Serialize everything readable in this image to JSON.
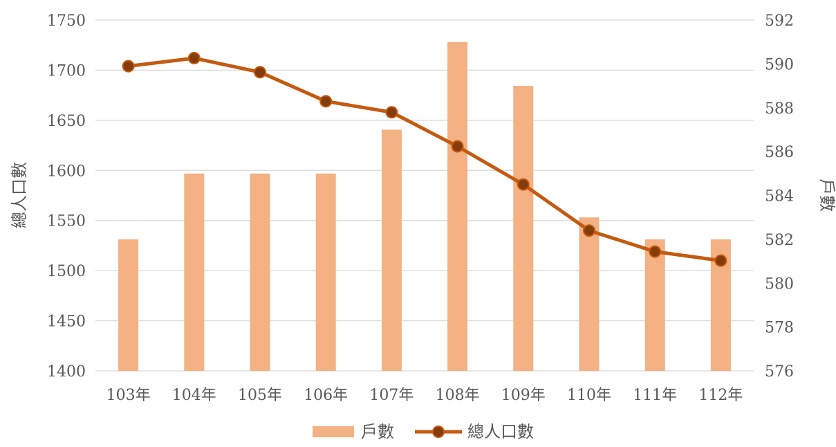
{
  "chart_data": {
    "type": "bar",
    "categories": [
      "103年",
      "104年",
      "105年",
      "106年",
      "107年",
      "108年",
      "109年",
      "110年",
      "111年",
      "112年"
    ],
    "series": [
      {
        "name": "戶數",
        "type": "bar",
        "axis": "right",
        "color": "#F4B183",
        "values": [
          582,
          585,
          585,
          585,
          587,
          591,
          589,
          583,
          582,
          582
        ]
      },
      {
        "name": "總人口數",
        "type": "line",
        "axis": "left",
        "color": "#C55A11",
        "values": [
          1704,
          1712,
          1698,
          1669,
          1658,
          1624,
          1586,
          1540,
          1519,
          1510
        ]
      }
    ],
    "y_left": {
      "label": "總人口數",
      "range": [
        1400,
        1750
      ],
      "ticks": [
        "1400",
        "1450",
        "1500",
        "1550",
        "1600",
        "1650",
        "1700",
        "1750"
      ]
    },
    "y_right": {
      "label": "戶數",
      "range": [
        576,
        592
      ],
      "ticks": [
        "576",
        "578",
        "580",
        "582",
        "584",
        "586",
        "588",
        "590",
        "592"
      ]
    },
    "grid": true,
    "legend_position": "bottom"
  }
}
